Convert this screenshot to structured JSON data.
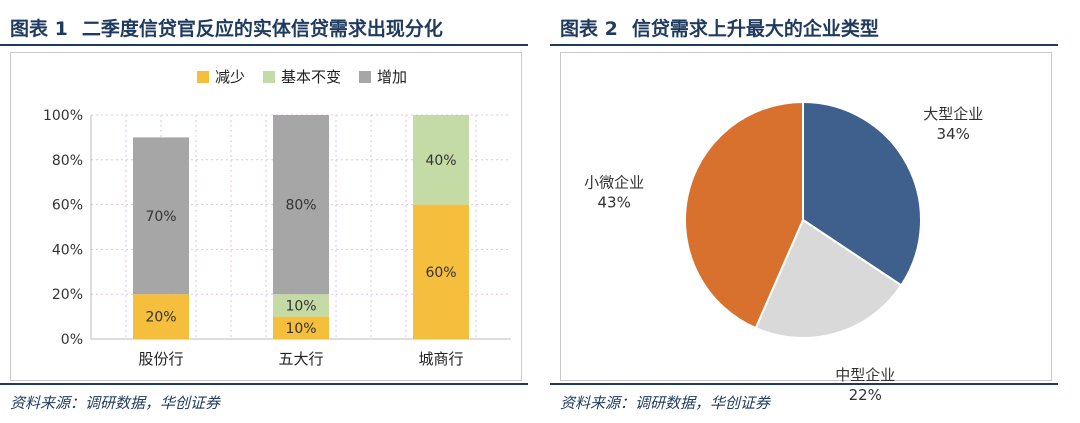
{
  "fig1": {
    "number": "图表 1",
    "title": "二季度信贷官反应的实体信贷需求出现分化",
    "source": "资料来源：调研数据，华创证券"
  },
  "fig2": {
    "number": "图表 2",
    "title": "信贷需求上升最大的企业类型",
    "source": "资料来源：调研数据，华创证券"
  },
  "chart_data": [
    {
      "type": "bar",
      "stacked": true,
      "categories": [
        "股份行",
        "五大行",
        "城商行"
      ],
      "series": [
        {
          "name": "减少",
          "values": [
            20,
            10,
            60
          ],
          "labels": [
            "20%",
            "10%",
            "60%"
          ],
          "color": "#f5be3c"
        },
        {
          "name": "基本不变",
          "values": [
            0,
            10,
            40
          ],
          "labels": [
            "",
            "10%",
            "40%"
          ],
          "color": "#c5dba6"
        },
        {
          "name": "增加",
          "values": [
            70,
            80,
            0
          ],
          "labels": [
            "70%",
            "80%",
            ""
          ],
          "color": "#a6a6a6"
        }
      ],
      "ylim": [
        0,
        100
      ],
      "yticks": [
        "0%",
        "20%",
        "40%",
        "60%",
        "80%",
        "100%"
      ],
      "legend_position": "top",
      "grid": true
    },
    {
      "type": "pie",
      "slices": [
        {
          "label": "大型企业",
          "value": 34,
          "value_label": "34%",
          "color": "#3f5f8c"
        },
        {
          "label": "中型企业",
          "value": 22,
          "value_label": "22%",
          "color": "#d9d9d9"
        },
        {
          "label": "小微企业",
          "value": 43,
          "value_label": "43%",
          "color": "#d9712e"
        }
      ]
    }
  ]
}
